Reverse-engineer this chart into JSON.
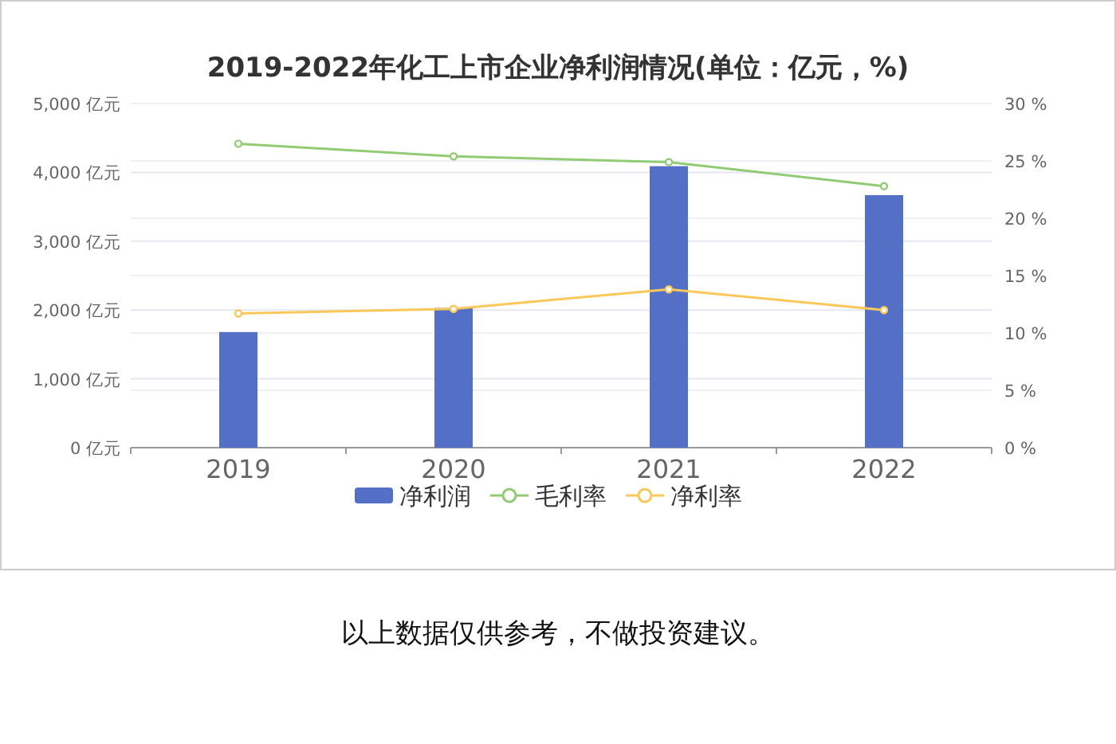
{
  "chart_data": {
    "type": "bar",
    "title": "2019-2022年化工上市企业净利润情况(单位：亿元，%)",
    "categories": [
      "2019",
      "2020",
      "2021",
      "2022"
    ],
    "series": [
      {
        "name": "净利润",
        "color": "#5470c6",
        "values": [
          1680,
          2030,
          4090,
          3670
        ]
      },
      {
        "name": "毛利率",
        "type": "line",
        "axis": "y2",
        "color": "#91cc75",
        "values": [
          26.5,
          25.4,
          24.9,
          22.8
        ]
      },
      {
        "name": "净利率",
        "type": "line",
        "axis": "y2",
        "color": "#fac858",
        "values": [
          11.7,
          12.1,
          13.8,
          12.0
        ]
      }
    ],
    "ylim": [
      0,
      5000
    ],
    "yticks": [
      {
        "value": 0,
        "label": "0 亿元"
      },
      {
        "value": 1000,
        "label": "1,000 亿元"
      },
      {
        "value": 2000,
        "label": "2,000 亿元"
      },
      {
        "value": 3000,
        "label": "3,000 亿元"
      },
      {
        "value": 4000,
        "label": "4,000 亿元"
      },
      {
        "value": 5000,
        "label": "5,000 亿元"
      }
    ],
    "y2lim": [
      0,
      30
    ],
    "y2ticks": [
      {
        "value": 0,
        "label": "0 %"
      },
      {
        "value": 5,
        "label": "5 %"
      },
      {
        "value": 10,
        "label": "10 %"
      },
      {
        "value": 15,
        "label": "15 %"
      },
      {
        "value": 20,
        "label": "20 %"
      },
      {
        "value": 25,
        "label": "25 %"
      },
      {
        "value": 30,
        "label": "30 %"
      }
    ],
    "grid": "y",
    "legend": "bottom",
    "marker": "circle",
    "annotations": [
      "以上数据仅供参考，不做投资建议。"
    ]
  }
}
